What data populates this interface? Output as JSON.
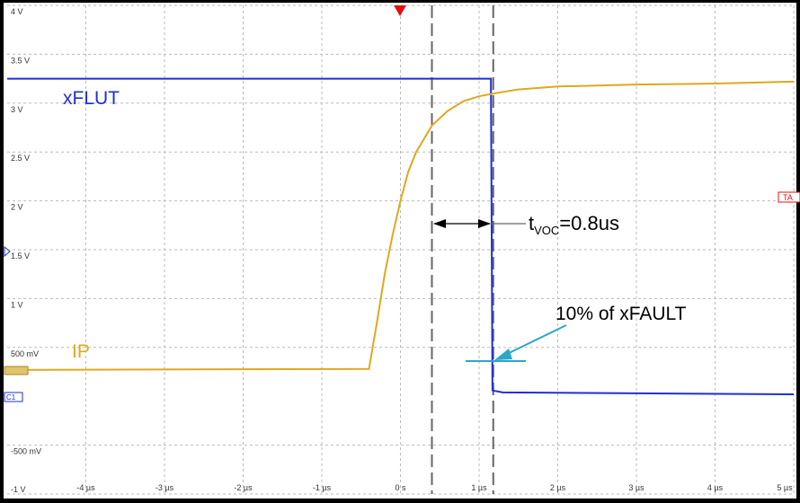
{
  "chart_data": {
    "type": "line",
    "xlim": [
      -5,
      5
    ],
    "ylim": [
      -1,
      4
    ],
    "xticks": [
      {
        "value": -4,
        "label": "-4 µs"
      },
      {
        "value": -3,
        "label": "-3 µs"
      },
      {
        "value": -2,
        "label": "-2 µs"
      },
      {
        "value": -1,
        "label": "-1 µs"
      },
      {
        "value": 0,
        "label": "0 s"
      },
      {
        "value": 1,
        "label": "1 µs"
      },
      {
        "value": 2,
        "label": "2 µs"
      },
      {
        "value": 3,
        "label": "3 µs"
      },
      {
        "value": 4,
        "label": "4 µs"
      },
      {
        "value": 5,
        "label": "5 µs"
      }
    ],
    "yticks": [
      {
        "value": -1,
        "label": "-1 V"
      },
      {
        "value": -0.5,
        "label": "-500 mV"
      },
      {
        "value": 0.5,
        "label": "500 mV"
      },
      {
        "value": 1,
        "label": "1 V"
      },
      {
        "value": 1.5,
        "label": "1.5 V"
      },
      {
        "value": 2,
        "label": "2 V"
      },
      {
        "value": 2.5,
        "label": "2.5 V"
      },
      {
        "value": 3,
        "label": "3 V"
      },
      {
        "value": 3.5,
        "label": "3.5 V"
      },
      {
        "value": 4,
        "label": "4 V"
      }
    ],
    "grid": true,
    "cursors": [
      0.4,
      1.18
    ],
    "series": [
      {
        "name": "xFLUT",
        "color": "#1f2fd6",
        "x": [
          -5,
          1.15,
          1.17,
          1.3,
          5
        ],
        "values": [
          3.25,
          3.25,
          0.06,
          0.04,
          0.02
        ]
      },
      {
        "name": "IP",
        "color": "#e0a81e",
        "x": [
          -5,
          -0.4,
          -0.3,
          -0.2,
          -0.1,
          0,
          0.1,
          0.2,
          0.4,
          0.6,
          0.8,
          1.0,
          1.2,
          1.5,
          2,
          3,
          4,
          5
        ],
        "values": [
          0.27,
          0.28,
          0.75,
          1.25,
          1.65,
          2.0,
          2.3,
          2.5,
          2.77,
          2.92,
          3.02,
          3.07,
          3.1,
          3.14,
          3.17,
          3.19,
          3.2,
          3.22
        ]
      }
    ],
    "annotations": {
      "delay_t": "t",
      "delay_sub": "VOC",
      "delay_rest": "=0.8us",
      "level": "10% of xFAULT"
    },
    "channel_label": "C1",
    "trigger_label": "TA"
  }
}
